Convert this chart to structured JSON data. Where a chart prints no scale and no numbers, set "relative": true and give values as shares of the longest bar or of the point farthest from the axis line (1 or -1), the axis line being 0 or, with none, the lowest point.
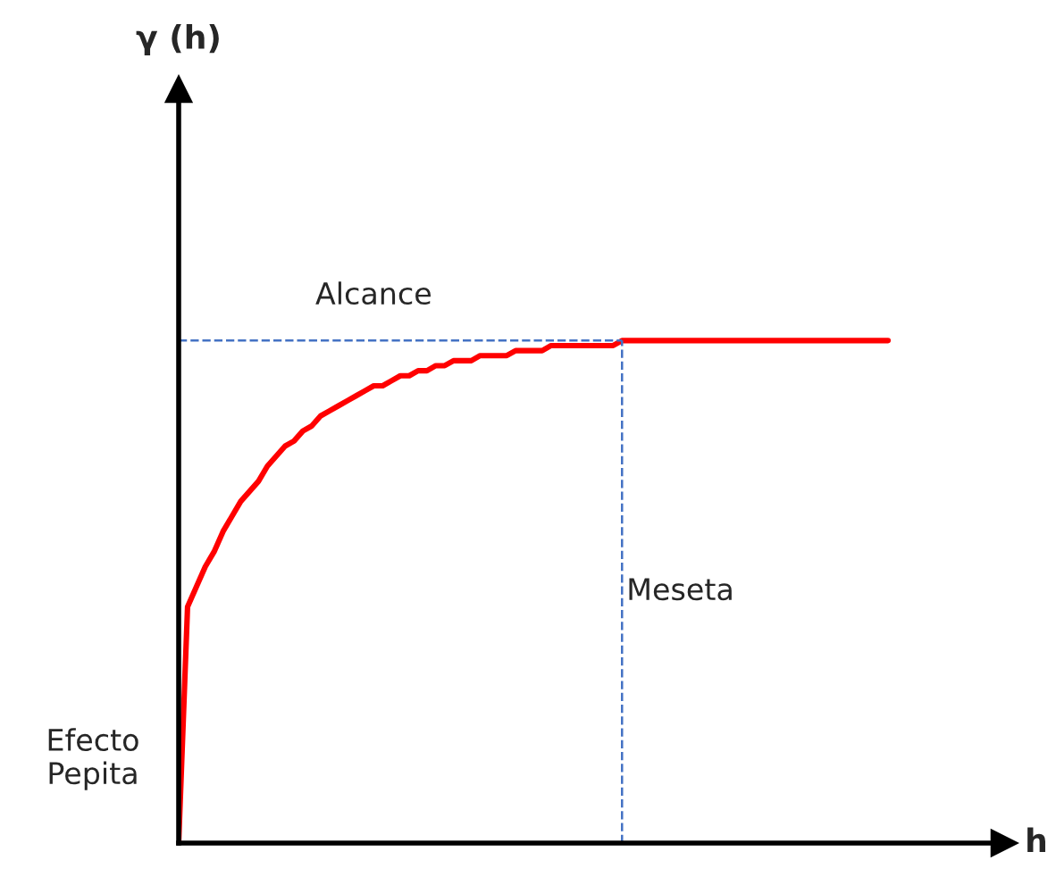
{
  "chart_data": {
    "type": "line",
    "relative": true,
    "xlabel": "h",
    "categories": [
      null,
      null,
      null,
      null,
      null,
      null,
      null,
      null,
      null,
      null,
      null,
      null,
      null,
      null,
      null,
      null,
      null,
      null,
      null,
      null,
      null,
      null,
      null,
      null,
      null,
      null,
      null,
      null,
      null,
      null,
      null,
      null,
      null,
      null,
      null,
      null,
      null,
      null,
      null,
      null,
      null,
      null,
      null,
      null,
      null,
      null,
      null,
      null,
      null,
      null,
      null,
      null,
      null,
      null,
      null,
      null,
      null,
      null,
      null,
      null,
      null,
      null,
      null,
      null,
      null,
      null,
      null,
      null,
      null,
      null,
      null,
      null,
      null,
      null,
      null,
      null,
      null,
      null,
      null,
      null,
      null
    ],
    "series": [
      {
        "color": "#ff0000",
        "line_style": "solid",
        "values": [
          0,
          0.47,
          0.51,
          0.55,
          0.58,
          0.62,
          0.65,
          0.68,
          0.7,
          0.72,
          0.75,
          0.77,
          0.79,
          0.8,
          0.82,
          0.83,
          0.85,
          0.86,
          0.87,
          0.88,
          0.89,
          0.9,
          0.91,
          0.91,
          0.92,
          0.93,
          0.93,
          0.94,
          0.94,
          0.95,
          0.95,
          0.96,
          0.96,
          0.96,
          0.97,
          0.97,
          0.97,
          0.97,
          0.98,
          0.98,
          0.98,
          0.98,
          0.99,
          0.99,
          0.99,
          0.99,
          0.99,
          0.99,
          0.99,
          0.99,
          1,
          1,
          1,
          1,
          1,
          1,
          1,
          1,
          1,
          1,
          1,
          1,
          1,
          1,
          1,
          1,
          1,
          1,
          1,
          1,
          1,
          1,
          1,
          1,
          1,
          1,
          1,
          1,
          1,
          1,
          1
        ]
      }
    ],
    "ref_lines": [
      {
        "axis": "y",
        "value": 1,
        "label": "Alcance",
        "color": "#4472c4",
        "line_style": "dashed"
      }
    ],
    "annotations": [
      "Meseta",
      "Efecto Pepita",
      "γ (h)"
    ],
    "legend": false,
    "grid": false,
    "tick_labels": false
  }
}
